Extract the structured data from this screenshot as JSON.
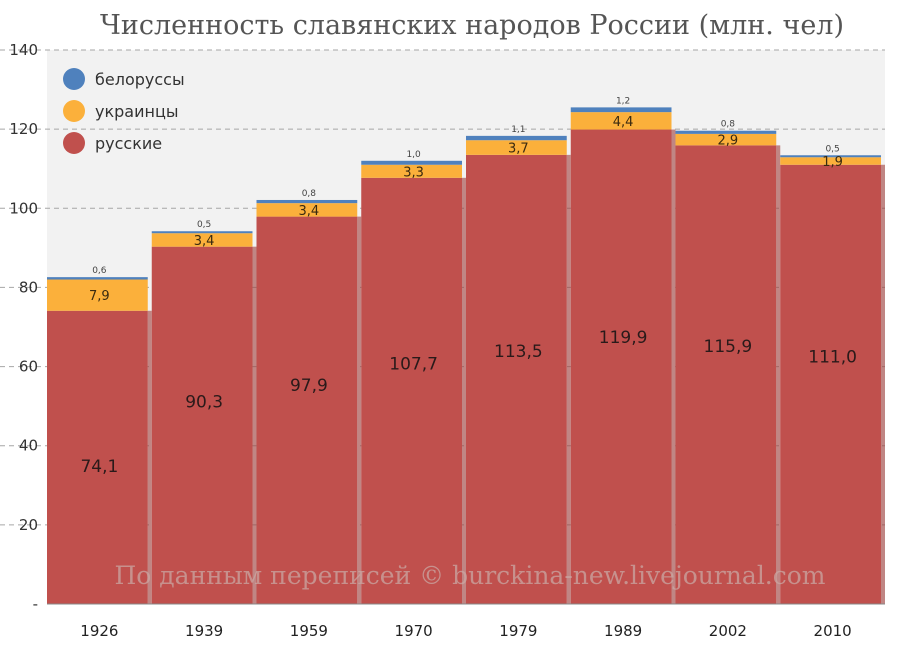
{
  "chart_data": {
    "type": "bar",
    "stacked": true,
    "title": "Численность славянских народов России (млн. чел)",
    "categories": [
      "1926",
      "1939",
      "1959",
      "1970",
      "1979",
      "1989",
      "2002",
      "2010"
    ],
    "series": [
      {
        "name": "русские",
        "values": [
          74.1,
          90.3,
          97.9,
          107.7,
          113.5,
          119.9,
          115.9,
          111.0
        ],
        "labels": [
          "74,1",
          "90,3",
          "97,9",
          "107,7",
          "113,5",
          "119,9",
          "115,9",
          "111,0"
        ],
        "color": "#c0504d"
      },
      {
        "name": "украинцы",
        "values": [
          7.9,
          3.4,
          3.4,
          3.3,
          3.7,
          4.4,
          2.9,
          1.9
        ],
        "labels": [
          "7,9",
          "3,4",
          "3,4",
          "3,3",
          "3,7",
          "4,4",
          "2,9",
          "1,9"
        ],
        "color": "#fbb03b"
      },
      {
        "name": "белоруссы",
        "values": [
          0.6,
          0.5,
          0.8,
          1.0,
          1.1,
          1.2,
          0.8,
          0.5
        ],
        "labels": [
          "0,6",
          "0,5",
          "0,8",
          "1,0",
          "1,1",
          "1,2",
          "0,8",
          "0,5"
        ],
        "color": "#4f81bd"
      }
    ],
    "legend": [
      "белоруссы",
      "украинцы",
      "русские"
    ],
    "legend_position": "top-left",
    "ylim": [
      0,
      140
    ],
    "yticks": [
      "-",
      "20",
      "40",
      "60",
      "80",
      "100",
      "120",
      "140"
    ],
    "grid": true,
    "watermark": "По данным переписей © burckina-new.livejournal.com"
  }
}
